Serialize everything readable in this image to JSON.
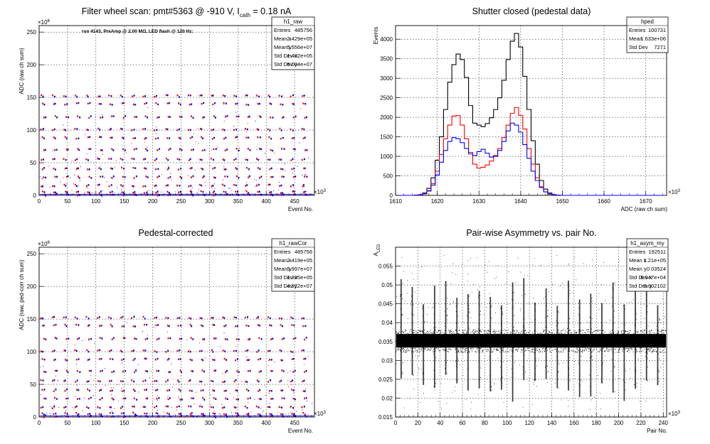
{
  "colors": {
    "black": "#000000",
    "red": "#ff0000",
    "blue": "#0000ff",
    "grid": "#000000",
    "background": "#ffffff"
  },
  "panels": [
    {
      "id": "raw",
      "title": "Filter wheel scan: pmt#5363 @  -910 V, I",
      "title_sub": "cath",
      "title_tail": " = 0.18 nA",
      "annotation": "run 4143, PreAmp @ 2.00 MΩ, LED flash @  120 Hz:",
      "ylabel": "ADC (raw ch sum)",
      "xlabel": "Event No.",
      "x_exponent": "×10",
      "x_exponent_power": "3",
      "y_exponent": "×10",
      "y_exponent_power": "6",
      "stats": {
        "name": "h1_raw",
        "rows": [
          {
            "label": "Entries",
            "value": "485756"
          },
          {
            "label": "Mean x",
            "value": "2.429e+05"
          },
          {
            "label": "Mean y",
            "value": "5.556e+07"
          },
          {
            "label": "Std Dev x",
            "value": "1.402e+05"
          },
          {
            "label": "Std Dev y",
            "value": "5.004e+07"
          }
        ]
      }
    },
    {
      "id": "ped",
      "title": "Shutter closed (pedestal data)",
      "ylabel": "Events",
      "xlabel": "ADC (raw ch sum)",
      "x_exponent": "×10",
      "x_exponent_power": "3",
      "stats": {
        "name": "hped",
        "rows": [
          {
            "label": "Entries",
            "value": "100731"
          },
          {
            "label": "Mean",
            "value": "1.633e+06"
          },
          {
            "label": "Std Dev",
            "value": "7271"
          }
        ]
      }
    },
    {
      "id": "cor",
      "title": "Pedestal-corrected",
      "ylabel": "ADC (raw, ped-corr ch sum)",
      "xlabel": "Event No.",
      "x_exponent": "×10",
      "x_exponent_power": "3",
      "y_exponent": "×10",
      "y_exponent_power": "6",
      "stats": {
        "name": "h1_rawCor",
        "rows": [
          {
            "label": "Entries",
            "value": "485756"
          },
          {
            "label": "Mean x",
            "value": "2.419e+05"
          },
          {
            "label": "Mean y",
            "value": "5.997e+07"
          },
          {
            "label": "Std Dev x",
            "value": "1.395e+05"
          },
          {
            "label": "Std Dev y",
            "value": "4.922e+07"
          }
        ]
      }
    },
    {
      "id": "asym",
      "title": "Pair-wise Asymmetry vs. pair No.",
      "ylabel": "A",
      "ylabel_sub": "LED",
      "xlabel": "Pair No.",
      "x_exponent": "×10",
      "x_exponent_power": "3",
      "stats": {
        "name": "h1_asym_my",
        "rows": [
          {
            "label": "Entries",
            "value": "192511"
          },
          {
            "label": "Mean x",
            "value": "1.21e+05"
          },
          {
            "label": "Mean y",
            "value": "0.03524"
          },
          {
            "label": "Std Dev x",
            "value": "6.947e+04"
          },
          {
            "label": "Std Dev y",
            "value": "0.002102"
          }
        ]
      }
    }
  ],
  "chart_data": [
    {
      "type": "scatter",
      "panel": "raw",
      "xlim": [
        0,
        485
      ],
      "ylim": [
        0,
        260
      ],
      "xticks": [
        "0",
        "50",
        "100",
        "150",
        "200",
        "250",
        "300",
        "350",
        "400",
        "450"
      ],
      "yticks": [
        "0",
        "50",
        "100",
        "150",
        "200",
        "250"
      ],
      "grid": true,
      "legend": "top-right",
      "cycle_period": 20,
      "levels": [
        152,
        140,
        120,
        101,
        88,
        70,
        55,
        41,
        28,
        15,
        5,
        1
      ],
      "series": [
        {
          "color": "blue",
          "offset": 6
        },
        {
          "color": "red",
          "offset": 3
        }
      ]
    },
    {
      "type": "line",
      "panel": "ped",
      "xlim": [
        1610,
        1675
      ],
      "ylim": [
        0,
        4350
      ],
      "xticks": [
        "1610",
        "1620",
        "1630",
        "1640",
        "1650",
        "1660",
        "1670"
      ],
      "yticks": [
        "0",
        "500",
        "1000",
        "1500",
        "2000",
        "2500",
        "3000",
        "3500",
        "4000"
      ],
      "grid": true,
      "legend": "top-right",
      "x": [
        1611,
        1612,
        1613,
        1614,
        1615,
        1616,
        1617,
        1618,
        1619,
        1620,
        1621,
        1622,
        1623,
        1624,
        1625,
        1626,
        1627,
        1628,
        1629,
        1630,
        1631,
        1632,
        1633,
        1634,
        1635,
        1636,
        1637,
        1638,
        1639,
        1640,
        1641,
        1642,
        1643,
        1644,
        1645,
        1646,
        1647,
        1648,
        1649,
        1650,
        1651,
        1652,
        1653,
        1654,
        1655,
        1656,
        1657,
        1658,
        1659,
        1660,
        1661,
        1662,
        1663,
        1664,
        1665,
        1666,
        1667,
        1668,
        1669,
        1670,
        1671,
        1672,
        1673,
        1674
      ],
      "series": [
        {
          "color": "black",
          "values": [
            0,
            0,
            0,
            0,
            5,
            20,
            60,
            180,
            450,
            900,
            1500,
            2200,
            2900,
            3350,
            3620,
            3480,
            3020,
            2300,
            1850,
            1800,
            1760,
            1840,
            1990,
            2200,
            2500,
            2950,
            3480,
            3950,
            4150,
            3800,
            3050,
            2200,
            1400,
            800,
            380,
            160,
            60,
            20,
            5,
            0,
            0,
            0,
            0,
            0,
            0,
            0,
            0,
            0,
            0,
            0,
            0,
            0,
            0,
            0,
            0,
            0,
            0,
            0,
            0,
            0,
            0,
            0,
            0,
            0
          ]
        },
        {
          "color": "red",
          "values": [
            0,
            0,
            0,
            0,
            3,
            15,
            45,
            120,
            300,
            620,
            1050,
            1450,
            1800,
            2030,
            2050,
            1800,
            1450,
            1100,
            800,
            700,
            720,
            780,
            880,
            1020,
            1200,
            1480,
            1800,
            2100,
            2250,
            2050,
            1700,
            1200,
            800,
            450,
            220,
            90,
            30,
            10,
            3,
            0,
            0,
            0,
            0,
            0,
            0,
            0,
            0,
            0,
            0,
            0,
            0,
            0,
            0,
            0,
            0,
            0,
            0,
            0,
            0,
            0,
            0,
            0,
            0,
            0
          ]
        },
        {
          "color": "blue",
          "values": [
            0,
            0,
            0,
            0,
            3,
            12,
            40,
            110,
            260,
            520,
            850,
            1150,
            1380,
            1480,
            1450,
            1350,
            1200,
            1060,
            1020,
            1120,
            1180,
            1080,
            980,
            1000,
            1150,
            1380,
            1650,
            1850,
            1800,
            1620,
            1300,
            950,
            620,
            380,
            200,
            90,
            35,
            12,
            4,
            0,
            0,
            0,
            0,
            0,
            0,
            0,
            0,
            0,
            0,
            0,
            0,
            0,
            0,
            0,
            0,
            0,
            0,
            0,
            0,
            0,
            0,
            0,
            0,
            0
          ]
        }
      ]
    },
    {
      "type": "scatter",
      "panel": "cor",
      "xlim": [
        0,
        485
      ],
      "ylim": [
        0,
        260
      ],
      "xticks": [
        "0",
        "50",
        "100",
        "150",
        "200",
        "250",
        "300",
        "350",
        "400",
        "450"
      ],
      "yticks": [
        "0",
        "50",
        "100",
        "150",
        "200",
        "250"
      ],
      "grid": true,
      "legend": "top-right",
      "cycle_period": 20,
      "levels": [
        152,
        140,
        120,
        101,
        88,
        70,
        55,
        41,
        28,
        15,
        5,
        1
      ],
      "series": [
        {
          "color": "blue",
          "offset": 6
        },
        {
          "color": "red",
          "offset": 3
        }
      ]
    },
    {
      "type": "scatter",
      "panel": "asym",
      "xlim": [
        0,
        243
      ],
      "ylim": [
        0.015,
        0.06
      ],
      "xticks": [
        "0",
        "20",
        "40",
        "60",
        "80",
        "100",
        "120",
        "140",
        "160",
        "180",
        "200",
        "220",
        "240"
      ],
      "yticks": [
        "0.015",
        "0.02",
        "0.025",
        "0.03",
        "0.035",
        "0.04",
        "0.045",
        "0.05",
        "0.055"
      ],
      "grid": true,
      "legend": "top-right",
      "band_center": 0.0352,
      "band_halfwidth": 0.0018,
      "spike_period": 10,
      "spike_low": 0.019,
      "spike_high": 0.052
    }
  ]
}
